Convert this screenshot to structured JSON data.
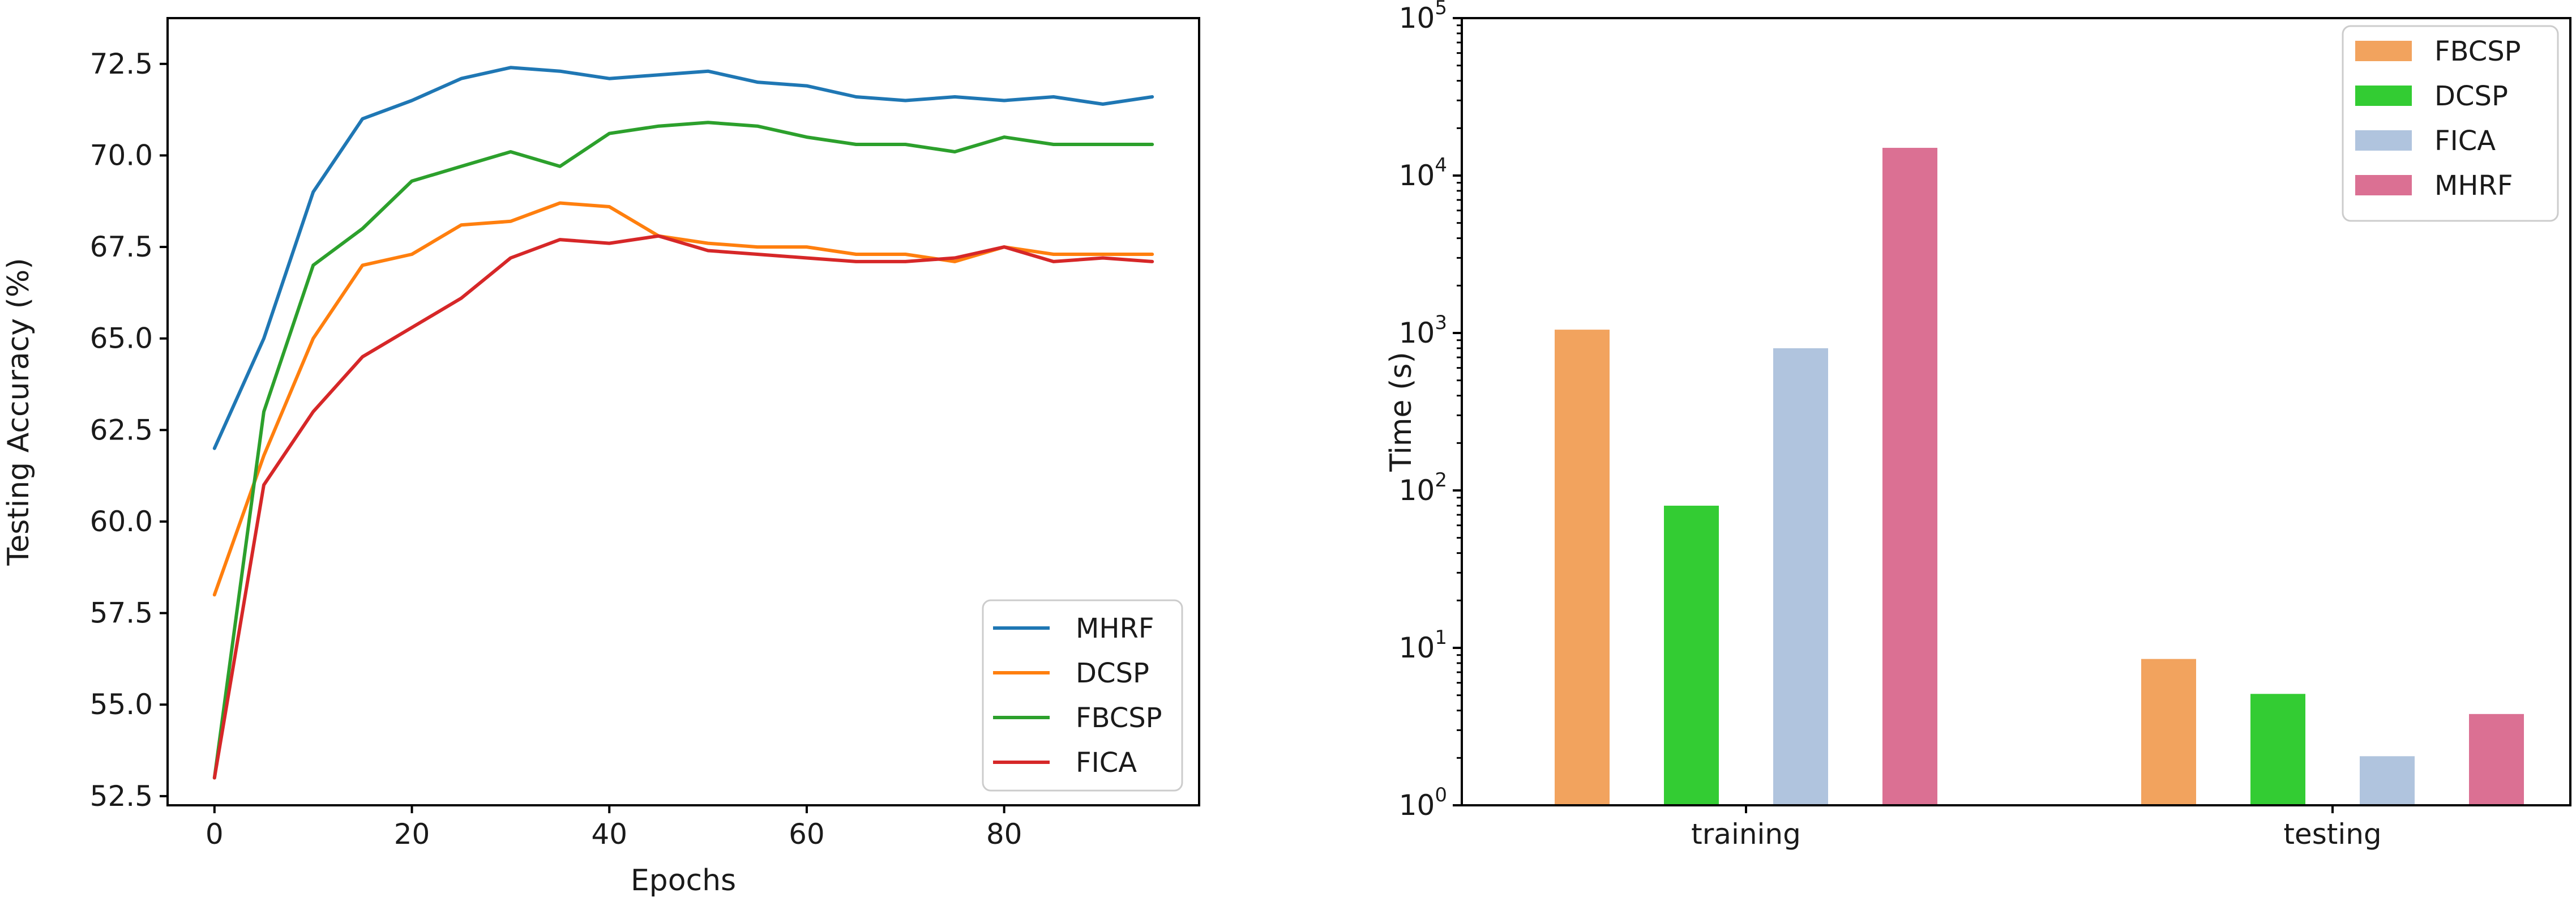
{
  "chart_data": [
    {
      "type": "line",
      "title": "",
      "xlabel": "Epochs",
      "ylabel": "Testing Accuracy (%)",
      "xlim": [
        -4.75,
        99.75
      ],
      "ylim": [
        52.25,
        73.75
      ],
      "xticks": [
        0,
        20,
        40,
        60,
        80
      ],
      "xtick_labels": [
        "0",
        "20",
        "40",
        "60",
        "80"
      ],
      "yticks": [
        52.5,
        55.0,
        57.5,
        60.0,
        62.5,
        65.0,
        67.5,
        70.0,
        72.5
      ],
      "ytick_labels": [
        "52.5",
        "55.0",
        "57.5",
        "60.0",
        "62.5",
        "65.0",
        "67.5",
        "70.0",
        "72.5"
      ],
      "grid": false,
      "legend_position": "lower right",
      "x": [
        0,
        5,
        10,
        15,
        20,
        25,
        30,
        35,
        40,
        45,
        50,
        55,
        60,
        65,
        70,
        75,
        80,
        85,
        90,
        95
      ],
      "series": [
        {
          "name": "MHRF",
          "color": "#1f77b4",
          "values": [
            62.0,
            65.0,
            69.0,
            71.0,
            71.5,
            72.1,
            72.4,
            72.3,
            72.1,
            72.2,
            72.3,
            72.0,
            71.9,
            71.6,
            71.5,
            71.6,
            71.5,
            71.6,
            71.4,
            71.6
          ]
        },
        {
          "name": "DCSP",
          "color": "#ff7f0e",
          "values": [
            58.0,
            61.8,
            65.0,
            67.0,
            67.3,
            68.1,
            68.2,
            68.7,
            68.6,
            67.8,
            67.6,
            67.5,
            67.5,
            67.3,
            67.3,
            67.1,
            67.5,
            67.3,
            67.3,
            67.3
          ]
        },
        {
          "name": "FBCSP",
          "color": "#2ca02c",
          "values": [
            53.0,
            63.0,
            67.0,
            68.0,
            69.3,
            69.7,
            70.1,
            69.7,
            70.6,
            70.8,
            70.9,
            70.8,
            70.5,
            70.3,
            70.3,
            70.1,
            70.5,
            70.3,
            70.3,
            70.3
          ]
        },
        {
          "name": "FICA",
          "color": "#d62728",
          "values": [
            53.0,
            61.0,
            63.0,
            64.5,
            65.3,
            66.1,
            67.2,
            67.7,
            67.6,
            67.8,
            67.4,
            67.3,
            67.2,
            67.1,
            67.1,
            67.2,
            67.5,
            67.1,
            67.2,
            67.1
          ]
        }
      ]
    },
    {
      "type": "bar",
      "title": "",
      "xlabel": "",
      "ylabel": "Time (s)",
      "yscale": "log",
      "ylim": [
        1,
        100000
      ],
      "ytick_base": "10",
      "ytick_exponents": [
        "0",
        "1",
        "2",
        "3",
        "4",
        "5"
      ],
      "categories": [
        "training",
        "testing"
      ],
      "grid": false,
      "legend_position": "upper right",
      "series": [
        {
          "name": "FBCSP",
          "color": "#f2a35e",
          "values": [
            1050,
            8.5
          ]
        },
        {
          "name": "DCSP",
          "color": "#33cc33",
          "values": [
            80,
            5.1
          ]
        },
        {
          "name": "FICA",
          "color": "#b0c4de",
          "values": [
            800,
            2.05
          ]
        },
        {
          "name": "MHRF",
          "color": "#db7093",
          "values": [
            15000,
            3.8
          ]
        }
      ]
    }
  ]
}
